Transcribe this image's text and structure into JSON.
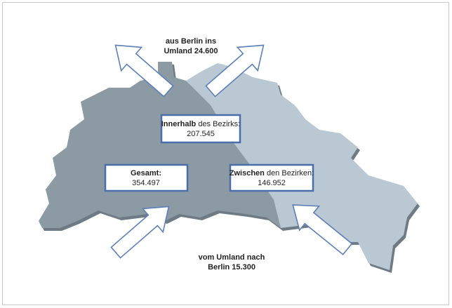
{
  "outflow": {
    "lines": [
      "aus Berlin ins",
      "Umland 24.600"
    ]
  },
  "inflow": {
    "lines": [
      "vom Umland nach",
      "Berlin 15.300"
    ]
  },
  "boxes": [
    {
      "parts": [
        "Innerhalb",
        " des Bezirks:"
      ],
      "value": "207.545"
    },
    {
      "parts": [
        "Gesamt:"
      ],
      "value": "354.497"
    },
    {
      "parts": [
        "Zwischen",
        " den Bezirken:"
      ],
      "value": "146.952"
    }
  ]
}
